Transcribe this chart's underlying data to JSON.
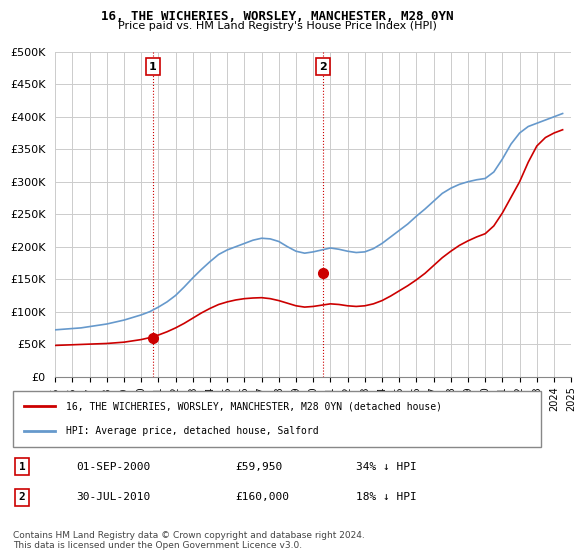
{
  "title": "16, THE WICHERIES, WORSLEY, MANCHESTER, M28 0YN",
  "subtitle": "Price paid vs. HM Land Registry's House Price Index (HPI)",
  "legend_line1": "16, THE WICHERIES, WORSLEY, MANCHESTER, M28 0YN (detached house)",
  "legend_line2": "HPI: Average price, detached house, Salford",
  "annotation1_label": "1",
  "annotation1_date": "01-SEP-2000",
  "annotation1_price": "£59,950",
  "annotation1_hpi": "34% ↓ HPI",
  "annotation2_label": "2",
  "annotation2_date": "30-JUL-2010",
  "annotation2_price": "£160,000",
  "annotation2_hpi": "18% ↓ HPI",
  "footer": "Contains HM Land Registry data © Crown copyright and database right 2024.\nThis data is licensed under the Open Government Licence v3.0.",
  "hpi_color": "#6699cc",
  "price_color": "#cc0000",
  "background_color": "#ffffff",
  "grid_color": "#cccccc",
  "ylim": [
    0,
    500000
  ],
  "yticks": [
    0,
    50000,
    100000,
    150000,
    200000,
    250000,
    300000,
    350000,
    400000,
    450000,
    500000
  ],
  "hpi_x": [
    1995,
    1995.5,
    1996,
    1996.5,
    1997,
    1997.5,
    1998,
    1998.5,
    1999,
    1999.5,
    2000,
    2000.5,
    2001,
    2001.5,
    2002,
    2002.5,
    2003,
    2003.5,
    2004,
    2004.5,
    2005,
    2005.5,
    2006,
    2006.5,
    2007,
    2007.5,
    2008,
    2008.5,
    2009,
    2009.5,
    2010,
    2010.5,
    2011,
    2011.5,
    2012,
    2012.5,
    2013,
    2013.5,
    2014,
    2014.5,
    2015,
    2015.5,
    2016,
    2016.5,
    2017,
    2017.5,
    2018,
    2018.5,
    2019,
    2019.5,
    2020,
    2020.5,
    2021,
    2021.5,
    2022,
    2022.5,
    2023,
    2023.5,
    2024,
    2024.5
  ],
  "hpi_y": [
    72000,
    73000,
    74000,
    75000,
    77000,
    79000,
    81000,
    84000,
    87000,
    91000,
    95000,
    100000,
    107000,
    115000,
    125000,
    138000,
    152000,
    165000,
    177000,
    188000,
    195000,
    200000,
    205000,
    210000,
    213000,
    212000,
    208000,
    200000,
    193000,
    190000,
    192000,
    195000,
    198000,
    196000,
    193000,
    191000,
    192000,
    197000,
    205000,
    215000,
    225000,
    235000,
    247000,
    258000,
    270000,
    282000,
    290000,
    296000,
    300000,
    303000,
    305000,
    315000,
    335000,
    358000,
    375000,
    385000,
    390000,
    395000,
    400000,
    405000
  ],
  "price_x": [
    1995,
    1995.5,
    1996,
    1996.5,
    1997,
    1997.5,
    1998,
    1998.5,
    1999,
    1999.5,
    2000,
    2000.5,
    2001,
    2001.5,
    2002,
    2002.5,
    2003,
    2003.5,
    2004,
    2004.5,
    2005,
    2005.5,
    2006,
    2006.5,
    2007,
    2007.5,
    2008,
    2008.5,
    2009,
    2009.5,
    2010,
    2010.5,
    2011,
    2011.5,
    2012,
    2012.5,
    2013,
    2013.5,
    2014,
    2014.5,
    2015,
    2015.5,
    2016,
    2016.5,
    2017,
    2017.5,
    2018,
    2018.5,
    2019,
    2019.5,
    2020,
    2020.5,
    2021,
    2021.5,
    2022,
    2022.5,
    2023,
    2023.5,
    2024,
    2024.5
  ],
  "price_y": [
    48000,
    48500,
    49000,
    49500,
    50000,
    50500,
    51000,
    52000,
    53000,
    55000,
    57000,
    60000,
    64000,
    69000,
    75000,
    82000,
    90000,
    98000,
    105000,
    111000,
    115000,
    118000,
    120000,
    121000,
    121500,
    120000,
    117000,
    113000,
    109000,
    107000,
    108000,
    110000,
    112000,
    111000,
    109000,
    108000,
    109000,
    112000,
    117000,
    124000,
    132000,
    140000,
    149000,
    159000,
    171000,
    183000,
    193000,
    202000,
    209000,
    215000,
    220000,
    232000,
    252000,
    276000,
    300000,
    330000,
    355000,
    368000,
    375000,
    380000
  ],
  "sale1_x": 2000.67,
  "sale1_y": 59950,
  "sale2_x": 2010.58,
  "sale2_y": 160000,
  "xtick_years": [
    1995,
    1996,
    1997,
    1998,
    1999,
    2000,
    2001,
    2002,
    2003,
    2004,
    2005,
    2006,
    2007,
    2008,
    2009,
    2010,
    2011,
    2012,
    2013,
    2014,
    2015,
    2016,
    2017,
    2018,
    2019,
    2020,
    2021,
    2022,
    2023,
    2024,
    2025
  ]
}
